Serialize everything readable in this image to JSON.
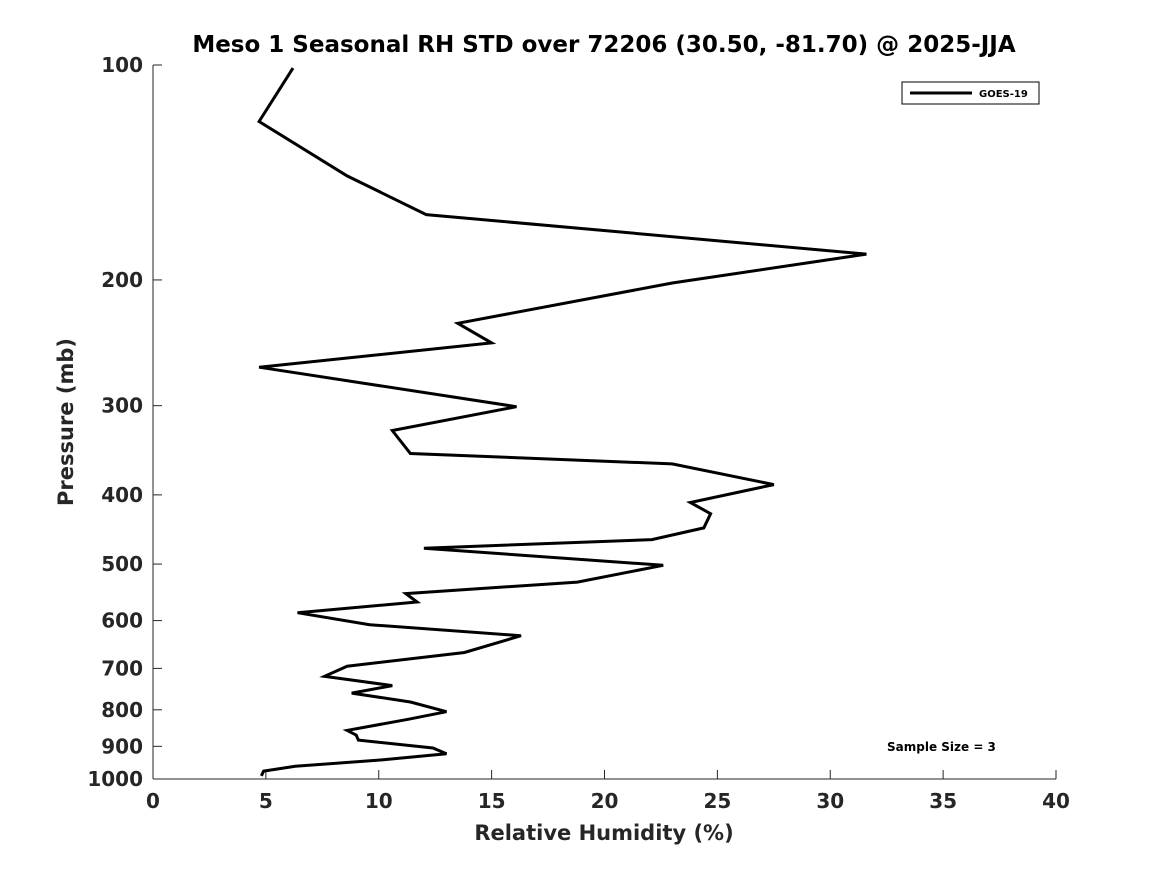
{
  "chart_data": {
    "type": "line",
    "title": "Meso 1 Seasonal RH STD over 72206 (30.50, -81.70) @ 2025-JJA",
    "xlabel": "Relative Humidity (%)",
    "ylabel": "Pressure (mb)",
    "xlim": [
      0,
      40
    ],
    "ylim": [
      100,
      1000
    ],
    "yscale": "log",
    "y_reversed": true,
    "xticks": [
      "0",
      "5",
      "10",
      "15",
      "20",
      "25",
      "30",
      "35",
      "40"
    ],
    "yticks": [
      "100",
      "200",
      "300",
      "400",
      "500",
      "600",
      "700",
      "800",
      "900",
      "1000"
    ],
    "grid": false,
    "legend_position": "top-right",
    "annotation": "Sample Size = 3",
    "series": [
      {
        "name": "GOES-19",
        "color": "#000000",
        "x": [
          4.8,
          4.9,
          6.3,
          10.2,
          13.0,
          12.4,
          9.1,
          9.0,
          8.6,
          11.3,
          13.0,
          11.4,
          8.8,
          10.6,
          7.6,
          8.6,
          13.8,
          16.3,
          9.6,
          6.4,
          11.7,
          11.2,
          18.8,
          22.6,
          12.0,
          22.1,
          24.4,
          24.7,
          23.8,
          27.5,
          23.0,
          11.4,
          10.6,
          16.1,
          4.7,
          15.0,
          13.5,
          23.0,
          31.6,
          12.1,
          8.6,
          4.7,
          6.2
        ],
        "y": [
          990,
          975,
          960,
          940,
          922,
          905,
          882,
          868,
          855,
          825,
          805,
          780,
          758,
          740,
          718,
          695,
          665,
          630,
          608,
          585,
          565,
          550,
          530,
          502,
          475,
          462,
          445,
          425,
          410,
          387,
          362,
          350,
          325,
          301,
          265,
          245,
          230,
          202,
          184,
          162,
          143,
          120,
          101
        ]
      }
    ]
  }
}
